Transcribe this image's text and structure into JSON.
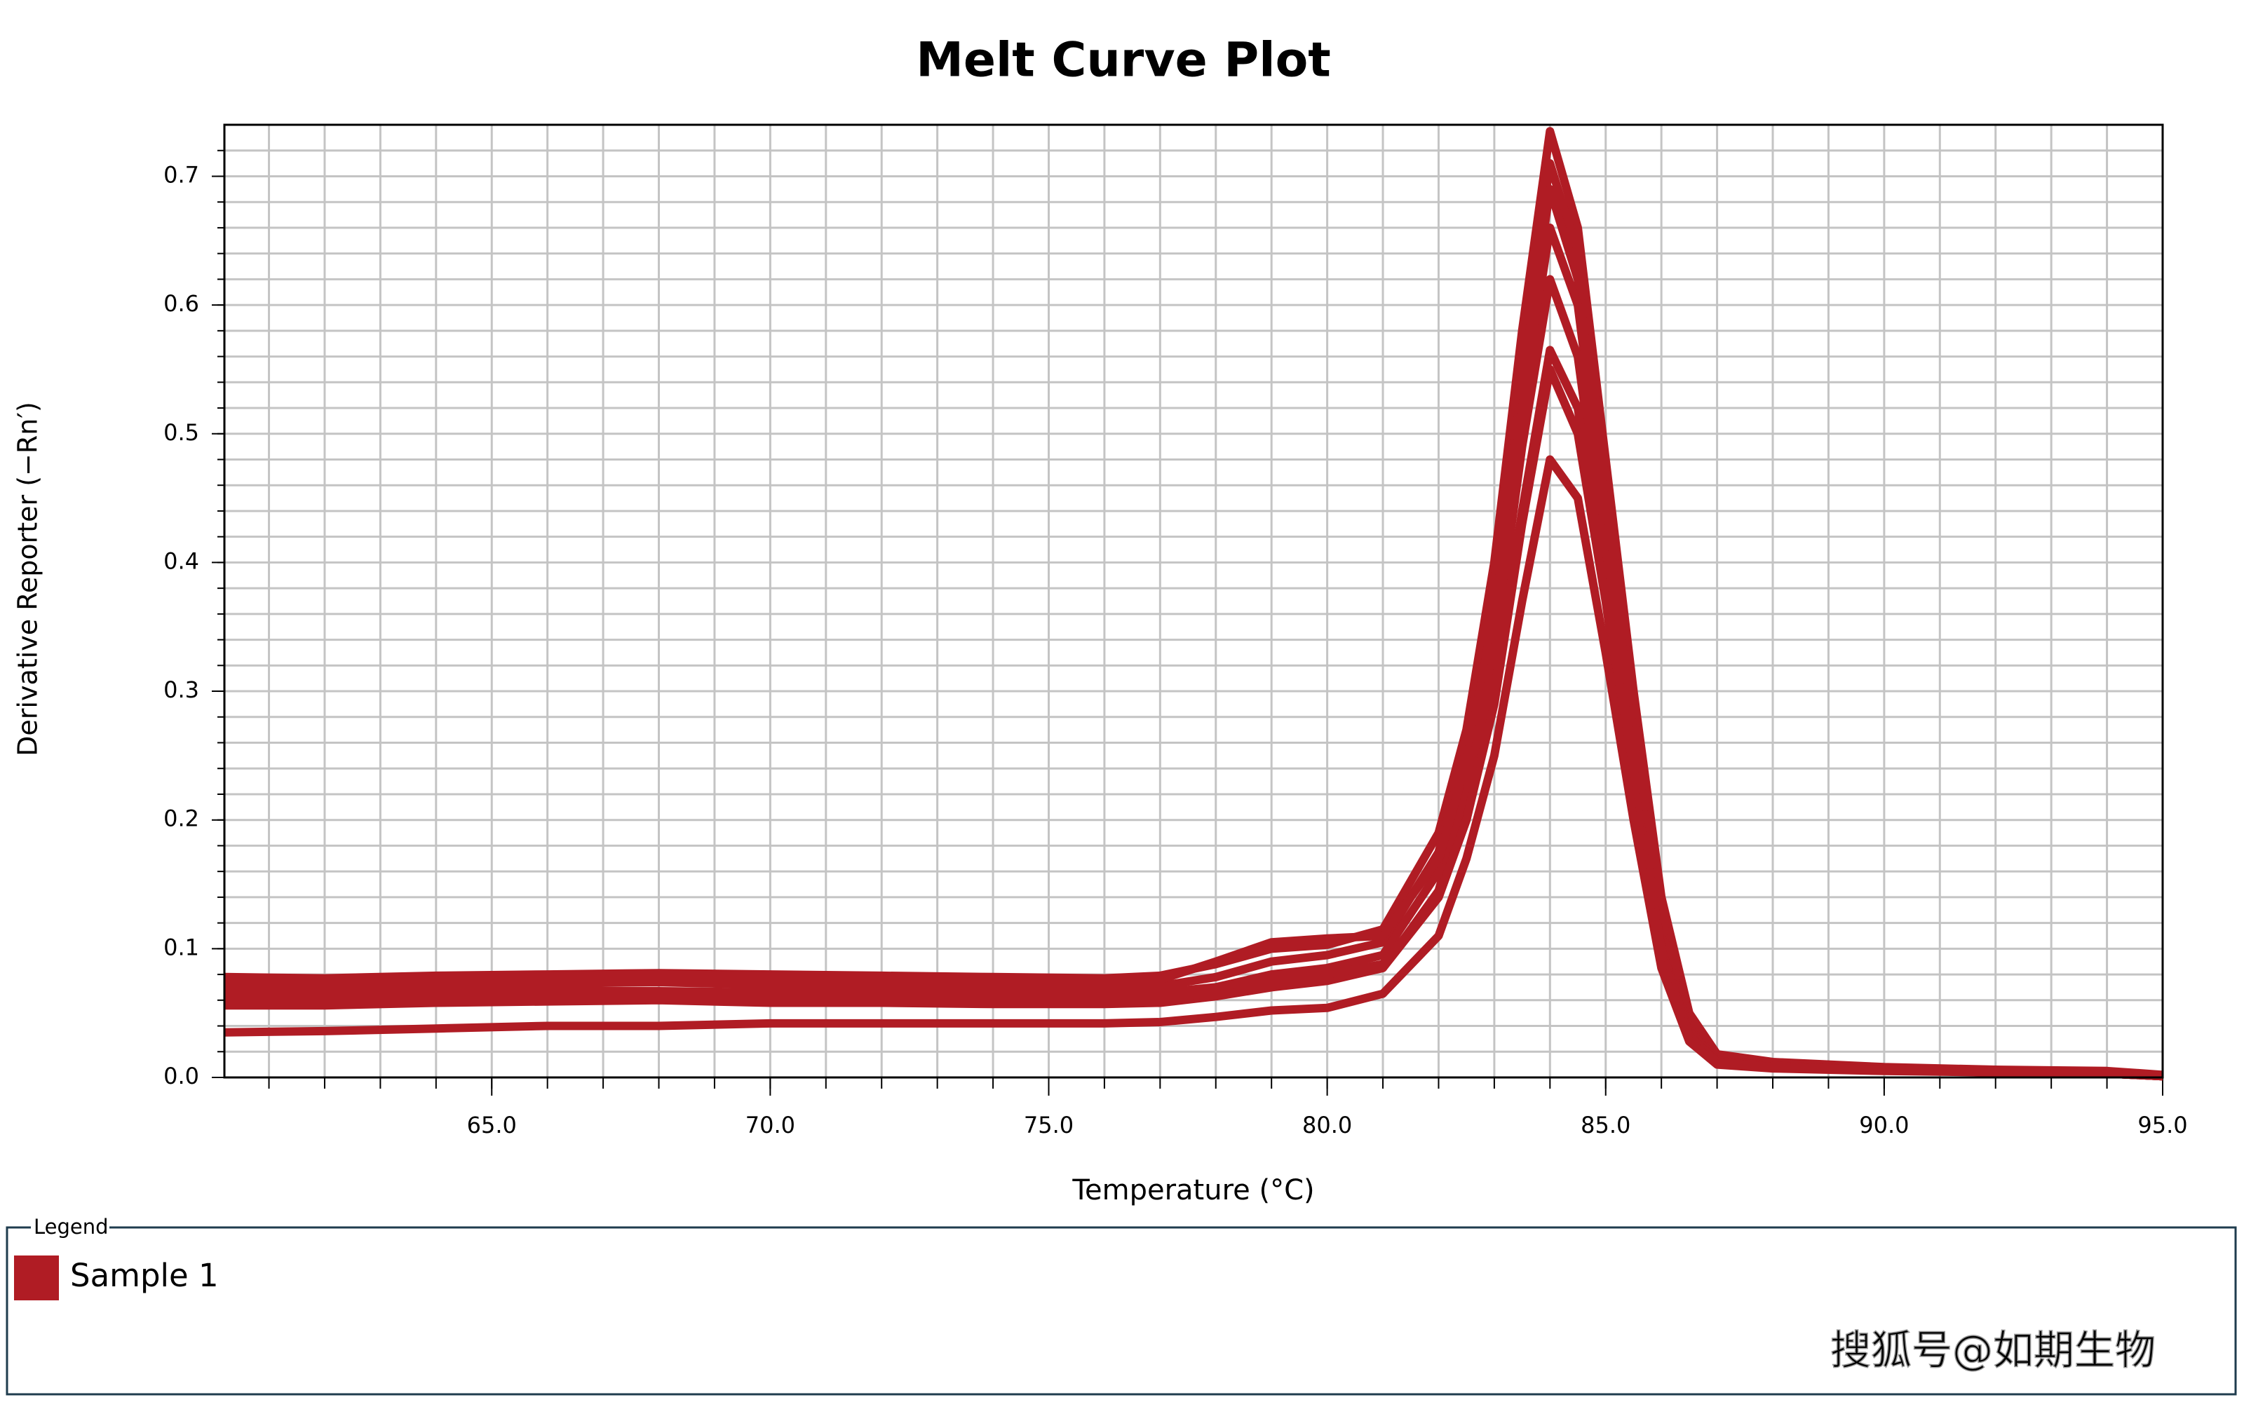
{
  "chart_data": {
    "type": "line",
    "title": "Melt Curve Plot",
    "x_label": "Temperature (°C)",
    "y_label": "Derivative Reporter (−Rn′)",
    "legend_title": "Legend",
    "watermark": "搜狐号@如期生物",
    "grid": true,
    "xlim": [
      60.2,
      95
    ],
    "ylim": [
      0,
      0.74
    ],
    "xticks": [
      {
        "value": 65,
        "label": "65.0"
      },
      {
        "value": 70,
        "label": "70.0"
      },
      {
        "value": 75,
        "label": "75.0"
      },
      {
        "value": 80,
        "label": "80.0"
      },
      {
        "value": 85,
        "label": "85.0"
      },
      {
        "value": 90,
        "label": "90.0"
      },
      {
        "value": 95,
        "label": "95.0"
      }
    ],
    "yticks": [
      {
        "value": 0,
        "label": "0.0"
      },
      0.1,
      0.2,
      0.3,
      0.4,
      0.5,
      0.6,
      0.7
    ],
    "xgrid": [
      61,
      62,
      63,
      64,
      65,
      66,
      67,
      68,
      69,
      70,
      71,
      72,
      73,
      74,
      75,
      76,
      77,
      78,
      79,
      80,
      81,
      82,
      83,
      84,
      85,
      86,
      87,
      88,
      89,
      90,
      91,
      92,
      93,
      94
    ],
    "ygrid": [
      0.02,
      0.04,
      0.06,
      0.08,
      0.1,
      0.12,
      0.14,
      0.16,
      0.18,
      0.2,
      0.22,
      0.24,
      0.26,
      0.28,
      0.3,
      0.32,
      0.34,
      0.36,
      0.38,
      0.4,
      0.42,
      0.44,
      0.46,
      0.48,
      0.5,
      0.52,
      0.54,
      0.56,
      0.58,
      0.6,
      0.62,
      0.64,
      0.66,
      0.68,
      0.7,
      0.72
    ],
    "x": [
      60.2,
      62,
      64,
      66,
      68,
      70,
      72,
      74,
      76,
      77,
      78,
      79,
      80,
      81,
      82,
      82.5,
      83,
      83.5,
      84,
      84.5,
      85,
      85.5,
      86,
      86.5,
      87,
      88,
      90,
      92,
      94,
      95
    ],
    "series": [
      {
        "name": "Sample 1",
        "color": "#b01c24",
        "values": [
          0.078,
          0.077,
          0.079,
          0.08,
          0.081,
          0.08,
          0.079,
          0.078,
          0.077,
          0.079,
          0.088,
          0.1,
          0.103,
          0.115,
          0.19,
          0.27,
          0.4,
          0.58,
          0.735,
          0.66,
          0.48,
          0.3,
          0.14,
          0.05,
          0.018,
          0.012,
          0.008,
          0.006,
          0.005,
          0.002
        ]
      },
      {
        "color": "#b01c24",
        "values": [
          0.07,
          0.07,
          0.072,
          0.073,
          0.074,
          0.072,
          0.072,
          0.071,
          0.07,
          0.071,
          0.078,
          0.09,
          0.095,
          0.105,
          0.175,
          0.255,
          0.385,
          0.56,
          0.71,
          0.64,
          0.46,
          0.28,
          0.125,
          0.042,
          0.015,
          0.01,
          0.007,
          0.005,
          0.004,
          0.001
        ]
      },
      {
        "color": "#b01c24",
        "values": [
          0.062,
          0.063,
          0.064,
          0.066,
          0.066,
          0.065,
          0.064,
          0.063,
          0.063,
          0.064,
          0.07,
          0.08,
          0.085,
          0.095,
          0.16,
          0.24,
          0.365,
          0.54,
          0.69,
          0.62,
          0.44,
          0.265,
          0.115,
          0.038,
          0.013,
          0.009,
          0.006,
          0.005,
          0.003,
          0.001
        ]
      },
      {
        "color": "#b01c24",
        "values": [
          0.075,
          0.076,
          0.078,
          0.079,
          0.08,
          0.078,
          0.077,
          0.075,
          0.074,
          0.076,
          0.09,
          0.105,
          0.108,
          0.11,
          0.17,
          0.245,
          0.36,
          0.52,
          0.66,
          0.6,
          0.43,
          0.26,
          0.11,
          0.036,
          0.013,
          0.009,
          0.006,
          0.005,
          0.003,
          0.001
        ]
      },
      {
        "color": "#b01c24",
        "values": [
          0.056,
          0.056,
          0.058,
          0.059,
          0.06,
          0.058,
          0.058,
          0.057,
          0.057,
          0.058,
          0.063,
          0.07,
          0.075,
          0.085,
          0.145,
          0.22,
          0.33,
          0.49,
          0.62,
          0.56,
          0.4,
          0.24,
          0.1,
          0.033,
          0.012,
          0.008,
          0.006,
          0.004,
          0.003,
          0.001
        ]
      },
      {
        "color": "#b01c24",
        "values": [
          0.06,
          0.06,
          0.061,
          0.062,
          0.062,
          0.061,
          0.06,
          0.06,
          0.06,
          0.061,
          0.066,
          0.072,
          0.076,
          0.085,
          0.14,
          0.2,
          0.3,
          0.44,
          0.565,
          0.52,
          0.38,
          0.23,
          0.1,
          0.033,
          0.012,
          0.008,
          0.006,
          0.004,
          0.003,
          0.001
        ]
      },
      {
        "color": "#b01c24",
        "values": [
          0.065,
          0.065,
          0.066,
          0.067,
          0.067,
          0.066,
          0.066,
          0.065,
          0.065,
          0.066,
          0.07,
          0.077,
          0.08,
          0.088,
          0.14,
          0.2,
          0.29,
          0.43,
          0.55,
          0.5,
          0.37,
          0.22,
          0.095,
          0.032,
          0.012,
          0.008,
          0.006,
          0.004,
          0.003,
          0.001
        ]
      },
      {
        "color": "#b01c24",
        "values": [
          0.035,
          0.036,
          0.038,
          0.04,
          0.04,
          0.042,
          0.042,
          0.042,
          0.042,
          0.043,
          0.047,
          0.052,
          0.054,
          0.065,
          0.11,
          0.17,
          0.25,
          0.37,
          0.48,
          0.45,
          0.33,
          0.2,
          0.085,
          0.028,
          0.01,
          0.007,
          0.005,
          0.004,
          0.003,
          0.001
        ]
      }
    ]
  }
}
